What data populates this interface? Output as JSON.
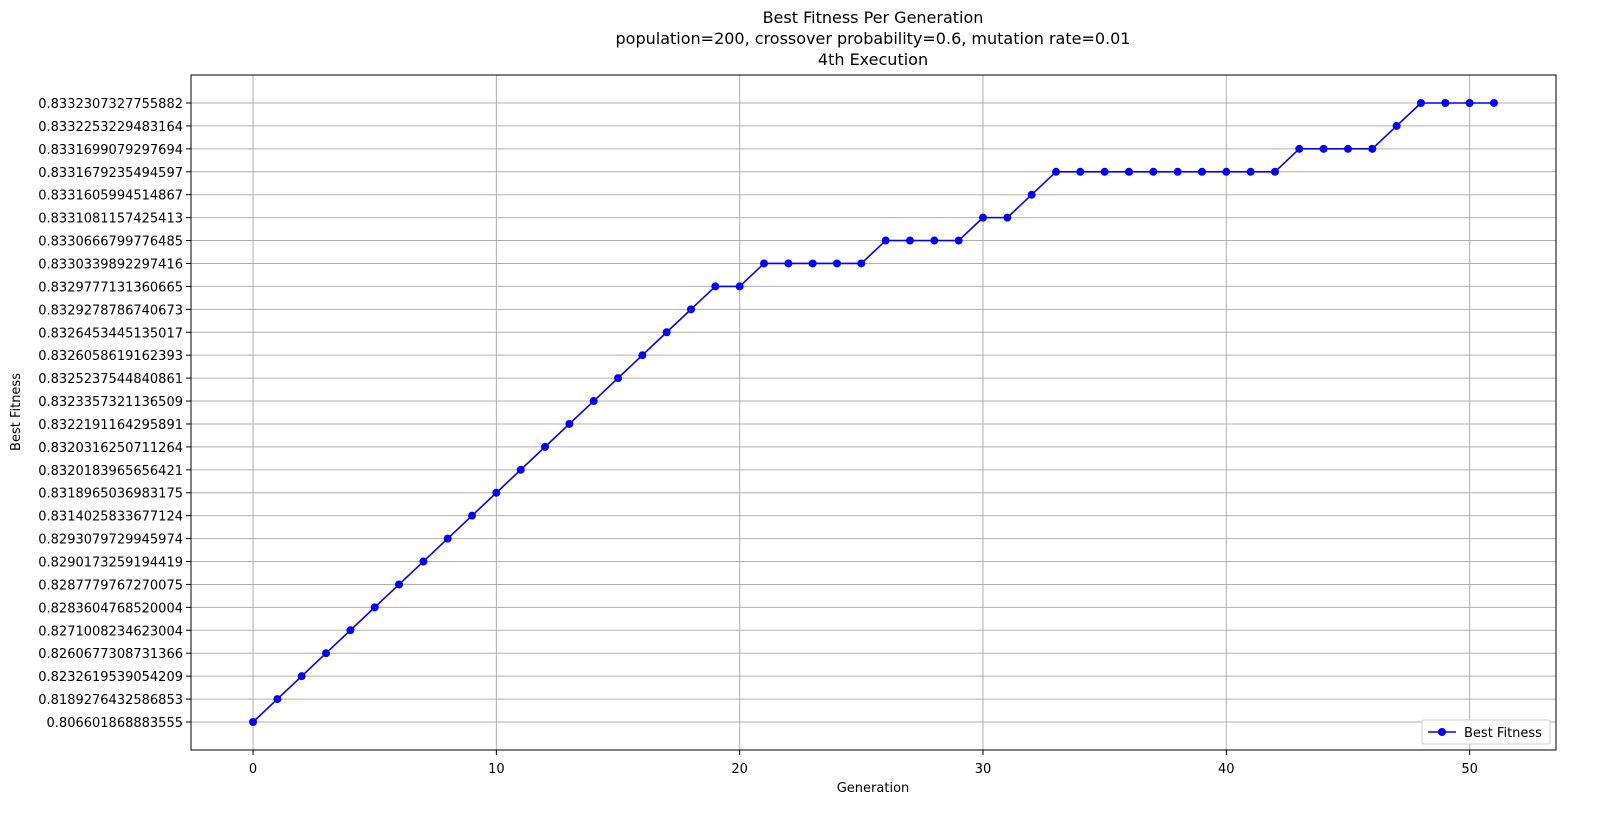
{
  "chart_data": {
    "type": "line",
    "title_lines": [
      "Best Fitness Per Generation",
      "population=200, crossover probability=0.6, mutation rate=0.01",
      "4th Execution"
    ],
    "xlabel": "Generation",
    "ylabel": "Best Fitness",
    "xlim": [
      -2.55,
      53.55
    ],
    "x_ticks": [
      0,
      10,
      20,
      30,
      40,
      50
    ],
    "x_tick_labels": [
      "0",
      "10",
      "20",
      "30",
      "40",
      "50"
    ],
    "y_axis_kind": "categorical",
    "y_categories": [
      "0.806601868883555",
      "0.8189276432586853",
      "0.8232619539054209",
      "0.8260677308731366",
      "0.8271008234623004",
      "0.8283604768520004",
      "0.8287779767270075",
      "0.8290173259194419",
      "0.8293079729945974",
      "0.8314025833677124",
      "0.8318965036983175",
      "0.8320183965656421",
      "0.8320316250711264",
      "0.8322191164295891",
      "0.8323357321136509",
      "0.8325237544840861",
      "0.8326058619162393",
      "0.8326453445135017",
      "0.8329278786740673",
      "0.8329777131360665",
      "0.8330339892297416",
      "0.8330666799776485",
      "0.8331081157425413",
      "0.8331605994514867",
      "0.8331679235494597",
      "0.8331699079297694",
      "0.8332253229483164",
      "0.8332307327755882"
    ],
    "grid": true,
    "legend_position": "bottom-right",
    "series": [
      {
        "name": "Best Fitness",
        "color": "#0000ff",
        "marker": "circle",
        "x": [
          0,
          1,
          2,
          3,
          4,
          5,
          6,
          7,
          8,
          9,
          10,
          11,
          12,
          13,
          14,
          15,
          16,
          17,
          18,
          19,
          20,
          21,
          22,
          23,
          24,
          25,
          26,
          27,
          28,
          29,
          30,
          31,
          32,
          33,
          34,
          35,
          36,
          37,
          38,
          39,
          40,
          41,
          42,
          43,
          44,
          45,
          46,
          47,
          48,
          49,
          50,
          51
        ],
        "y": [
          "0.806601868883555",
          "0.8189276432586853",
          "0.8232619539054209",
          "0.8260677308731366",
          "0.8271008234623004",
          "0.8283604768520004",
          "0.8287779767270075",
          "0.8290173259194419",
          "0.8293079729945974",
          "0.8314025833677124",
          "0.8318965036983175",
          "0.8320183965656421",
          "0.8320316250711264",
          "0.8322191164295891",
          "0.8323357321136509",
          "0.8325237544840861",
          "0.8326058619162393",
          "0.8326453445135017",
          "0.8329278786740673",
          "0.8329777131360665",
          "0.8329777131360665",
          "0.8330339892297416",
          "0.8330339892297416",
          "0.8330339892297416",
          "0.8330339892297416",
          "0.8330339892297416",
          "0.8330666799776485",
          "0.8330666799776485",
          "0.8330666799776485",
          "0.8330666799776485",
          "0.8331081157425413",
          "0.8331081157425413",
          "0.8331605994514867",
          "0.8331679235494597",
          "0.8331679235494597",
          "0.8331679235494597",
          "0.8331679235494597",
          "0.8331679235494597",
          "0.8331679235494597",
          "0.8331679235494597",
          "0.8331679235494597",
          "0.8331679235494597",
          "0.8331679235494597",
          "0.8331699079297694",
          "0.8331699079297694",
          "0.8331699079297694",
          "0.8331699079297694",
          "0.8332253229483164",
          "0.8332307327755882",
          "0.8332307327755882",
          "0.8332307327755882",
          "0.8332307327755882"
        ]
      }
    ]
  }
}
